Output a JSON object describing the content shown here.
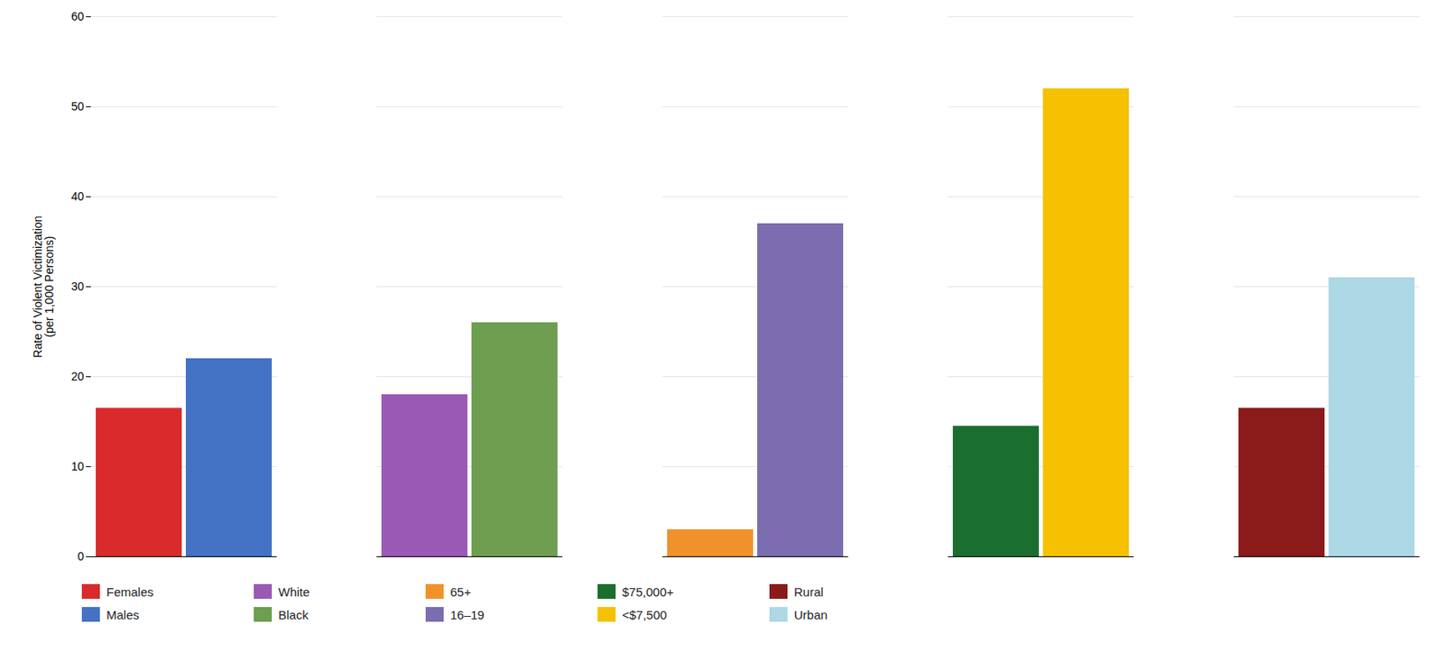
{
  "chart_data": {
    "type": "bar",
    "categories": [
      "Females",
      "Males",
      "White",
      "Black",
      "65+",
      "16–19",
      "$75,000+",
      "<$7,500",
      "Rural",
      "Urban"
    ],
    "values": [
      16.5,
      22.0,
      18.0,
      26.0,
      3.0,
      37.0,
      14.5,
      52.0,
      16.5,
      31.0
    ],
    "colors": [
      "#d92b2b",
      "#4472c4",
      "#9b59b6",
      "#6e9e50",
      "#f0922b",
      "#7b6db0",
      "#1a6e2e",
      "#f5c100",
      "#8b1a1a",
      "#add8e6"
    ],
    "ylabel": "Rate of Violent Victimization\n(per 1,000 Persons)",
    "ylim": [
      0,
      60
    ],
    "yticks": [
      0,
      10,
      20,
      30,
      40,
      50,
      60
    ],
    "grid": true,
    "legend": "bottom",
    "tick_labels": "y"
  }
}
